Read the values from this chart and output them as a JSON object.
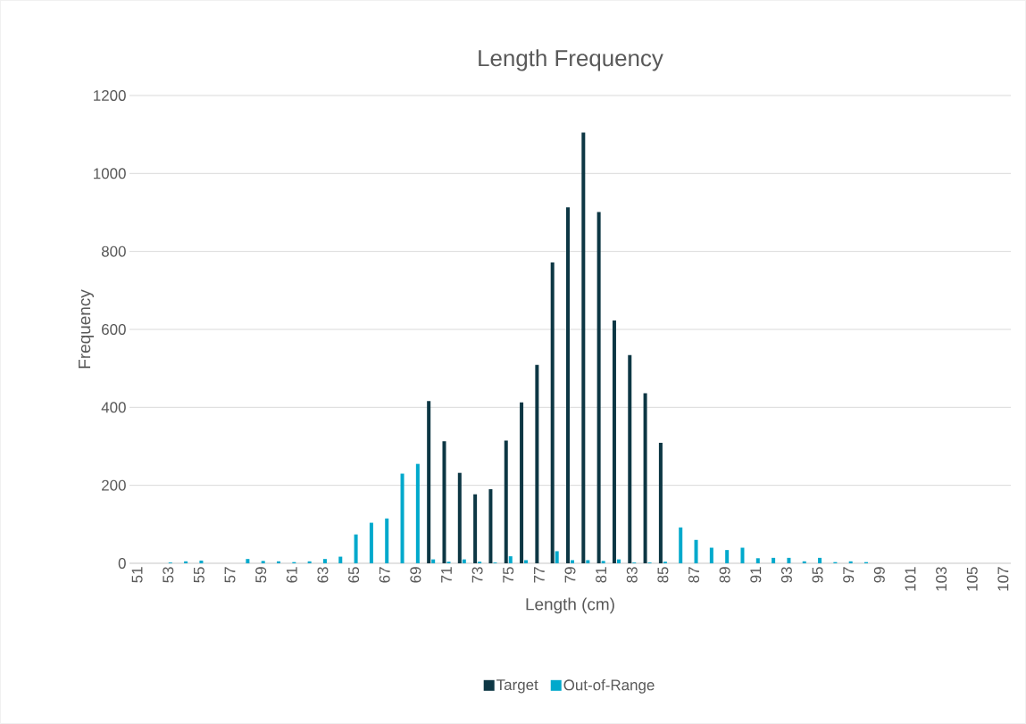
{
  "chart_data": {
    "type": "bar",
    "title": "Length Frequency",
    "xlabel": "Length (cm)",
    "ylabel": "Frequency",
    "categories": [
      "51",
      null,
      "53",
      null,
      "55",
      null,
      "57",
      null,
      "59",
      null,
      "61",
      null,
      "63",
      null,
      "65",
      null,
      "67",
      null,
      "69",
      null,
      "71",
      null,
      "73",
      null,
      "75",
      null,
      "77",
      null,
      "79",
      null,
      "81",
      null,
      "83",
      null,
      "85",
      null,
      "87",
      null,
      "89",
      null,
      "91",
      null,
      "93",
      null,
      "95",
      null,
      "97",
      null,
      "99",
      null,
      "101",
      null,
      "103",
      null,
      "105",
      null,
      "107"
    ],
    "series": [
      {
        "name": "Target",
        "color": "#0d3744",
        "values": [
          0,
          0,
          0,
          0,
          0,
          0,
          0,
          0,
          0,
          0,
          0,
          0,
          0,
          0,
          0,
          0,
          0,
          0,
          0,
          416,
          313,
          232,
          177,
          190,
          315,
          413,
          509,
          772,
          913,
          1105,
          901,
          623,
          534,
          436,
          309,
          0,
          0,
          0,
          0,
          0,
          0,
          0,
          0,
          0,
          0,
          0,
          0,
          0,
          0,
          0,
          0,
          0,
          0,
          0,
          0,
          0,
          0
        ]
      },
      {
        "name": "Out-of-Range",
        "color": "#00a9cc",
        "values": [
          0,
          null,
          2,
          5,
          7,
          0,
          null,
          11,
          6,
          5,
          3,
          5,
          11,
          17,
          74,
          104,
          115,
          230,
          255,
          10,
          4,
          10,
          4,
          2,
          18,
          8,
          0,
          31,
          8,
          8,
          6,
          10,
          2,
          2,
          4,
          92,
          60,
          40,
          34,
          40,
          13,
          14,
          14,
          5,
          14,
          3,
          5,
          3,
          null,
          null,
          0,
          0,
          0,
          0,
          0,
          0,
          0
        ]
      }
    ],
    "ylim": [
      0,
      1200
    ],
    "yticks": [
      0,
      200,
      400,
      600,
      800,
      1000,
      1200
    ],
    "grid": "y",
    "legend": "bottom"
  }
}
